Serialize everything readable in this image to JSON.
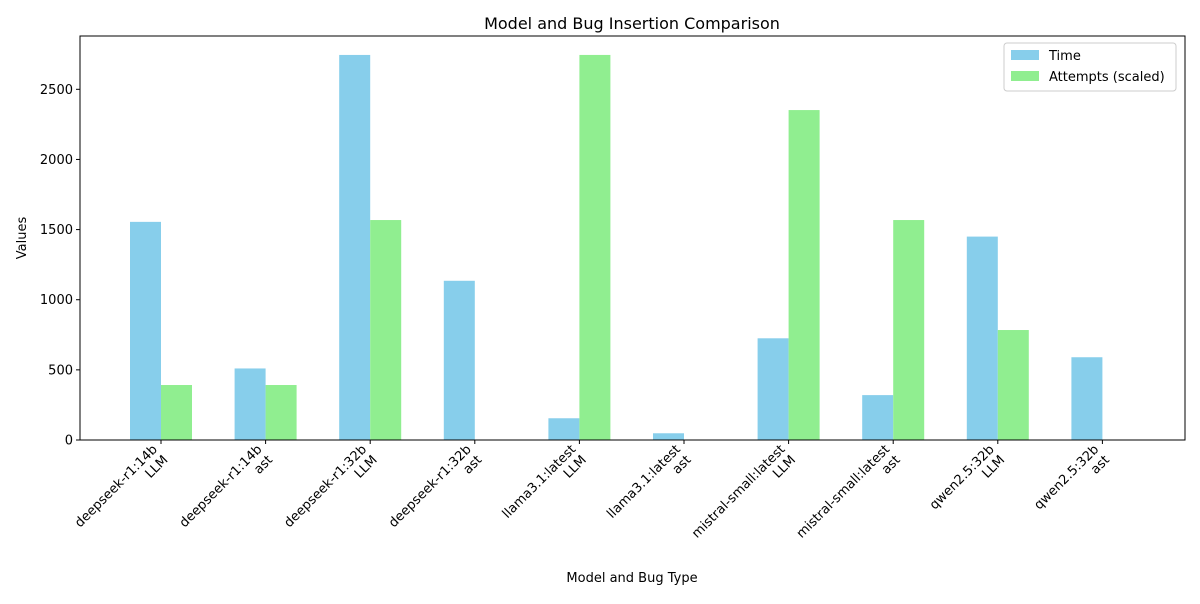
{
  "chart_data": {
    "type": "bar",
    "title": "Model and Bug Insertion Comparison",
    "xlabel": "Model and Bug Type",
    "ylabel": "Values",
    "ylim": [
      0,
      2880
    ],
    "yticks": [
      0,
      500,
      1000,
      1500,
      2000,
      2500
    ],
    "grid": false,
    "legend_position": "top-right",
    "categories": [
      [
        "deepseek-r1:14b",
        "LLM"
      ],
      [
        "deepseek-r1:14b",
        "ast"
      ],
      [
        "deepseek-r1:32b",
        "LLM"
      ],
      [
        "deepseek-r1:32b",
        "ast"
      ],
      [
        "llama3.1:latest",
        "LLM"
      ],
      [
        "llama3.1:latest",
        "ast"
      ],
      [
        "mistral-small:latest",
        "LLM"
      ],
      [
        "mistral-small:latest",
        "ast"
      ],
      [
        "qwen2.5:32b",
        "LLM"
      ],
      [
        "qwen2.5:32b",
        "ast"
      ]
    ],
    "series": [
      {
        "name": "Time",
        "color": "#87ceeb",
        "values": [
          1555,
          510,
          2745,
          1135,
          155,
          48,
          725,
          320,
          1450,
          590
        ]
      },
      {
        "name": "Attempts (scaled)",
        "color": "#90ee90",
        "values": [
          392,
          392,
          1568,
          0,
          2745,
          0,
          2352,
          1568,
          784,
          0
        ]
      }
    ]
  }
}
